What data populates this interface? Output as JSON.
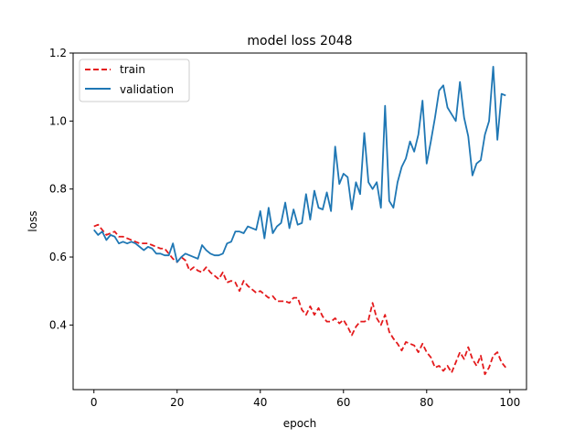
{
  "chart_data": {
    "type": "line",
    "title": "model loss 2048",
    "xlabel": "epoch",
    "ylabel": "loss",
    "xlim": [
      -5,
      104
    ],
    "ylim": [
      0.21,
      1.2
    ],
    "xticks": [
      0,
      20,
      40,
      60,
      80,
      100
    ],
    "yticks": [
      0.4,
      0.6,
      0.8,
      1.0,
      1.2
    ],
    "ytick_labels": [
      "0.4",
      "0.6",
      "0.8",
      "1.0",
      "1.2"
    ],
    "legend_position": "upper-left",
    "x": [
      0,
      1,
      2,
      3,
      4,
      5,
      6,
      7,
      8,
      9,
      10,
      11,
      12,
      13,
      14,
      15,
      16,
      17,
      18,
      19,
      20,
      21,
      22,
      23,
      24,
      25,
      26,
      27,
      28,
      29,
      30,
      31,
      32,
      33,
      34,
      35,
      36,
      37,
      38,
      39,
      40,
      41,
      42,
      43,
      44,
      45,
      46,
      47,
      48,
      49,
      50,
      51,
      52,
      53,
      54,
      55,
      56,
      57,
      58,
      59,
      60,
      61,
      62,
      63,
      64,
      65,
      66,
      67,
      68,
      69,
      70,
      71,
      72,
      73,
      74,
      75,
      76,
      77,
      78,
      79,
      80,
      81,
      82,
      83,
      84,
      85,
      86,
      87,
      88,
      89,
      90,
      91,
      92,
      93,
      94,
      95,
      96,
      97,
      98,
      99
    ],
    "series": [
      {
        "name": "train",
        "color": "#e41a1c",
        "dash": true,
        "values": [
          0.69,
          0.695,
          0.68,
          0.665,
          0.67,
          0.675,
          0.66,
          0.66,
          0.655,
          0.65,
          0.645,
          0.64,
          0.64,
          0.64,
          0.635,
          0.63,
          0.625,
          0.625,
          0.61,
          0.595,
          0.585,
          0.6,
          0.59,
          0.56,
          0.57,
          0.56,
          0.555,
          0.57,
          0.555,
          0.545,
          0.535,
          0.555,
          0.525,
          0.53,
          0.525,
          0.5,
          0.53,
          0.515,
          0.505,
          0.495,
          0.5,
          0.49,
          0.48,
          0.485,
          0.47,
          0.47,
          0.47,
          0.465,
          0.48,
          0.48,
          0.445,
          0.43,
          0.455,
          0.43,
          0.45,
          0.425,
          0.41,
          0.41,
          0.42,
          0.405,
          0.415,
          0.395,
          0.37,
          0.395,
          0.41,
          0.41,
          0.415,
          0.465,
          0.42,
          0.4,
          0.43,
          0.38,
          0.36,
          0.345,
          0.325,
          0.35,
          0.345,
          0.34,
          0.32,
          0.345,
          0.32,
          0.305,
          0.275,
          0.28,
          0.265,
          0.28,
          0.26,
          0.29,
          0.32,
          0.3,
          0.335,
          0.3,
          0.28,
          0.31,
          0.255,
          0.275,
          0.31,
          0.32,
          0.29,
          0.275
        ]
      },
      {
        "name": "validation",
        "color": "#1f77b4",
        "dash": false,
        "values": [
          0.68,
          0.665,
          0.675,
          0.65,
          0.665,
          0.66,
          0.64,
          0.645,
          0.64,
          0.645,
          0.64,
          0.63,
          0.62,
          0.63,
          0.625,
          0.61,
          0.61,
          0.605,
          0.605,
          0.64,
          0.585,
          0.6,
          0.61,
          0.605,
          0.6,
          0.595,
          0.635,
          0.62,
          0.61,
          0.605,
          0.605,
          0.61,
          0.64,
          0.645,
          0.675,
          0.675,
          0.67,
          0.69,
          0.685,
          0.68,
          0.735,
          0.655,
          0.745,
          0.67,
          0.69,
          0.7,
          0.76,
          0.685,
          0.74,
          0.695,
          0.7,
          0.785,
          0.71,
          0.795,
          0.745,
          0.74,
          0.79,
          0.735,
          0.925,
          0.815,
          0.845,
          0.835,
          0.74,
          0.82,
          0.785,
          0.965,
          0.82,
          0.8,
          0.82,
          0.745,
          1.045,
          0.765,
          0.745,
          0.82,
          0.865,
          0.89,
          0.94,
          0.91,
          0.96,
          1.06,
          0.875,
          0.94,
          1.01,
          1.09,
          1.105,
          1.04,
          1.02,
          1.0,
          1.115,
          1.01,
          0.955,
          0.84,
          0.875,
          0.885,
          0.96,
          1.0,
          1.16,
          0.945,
          1.08,
          1.075
        ]
      }
    ]
  }
}
